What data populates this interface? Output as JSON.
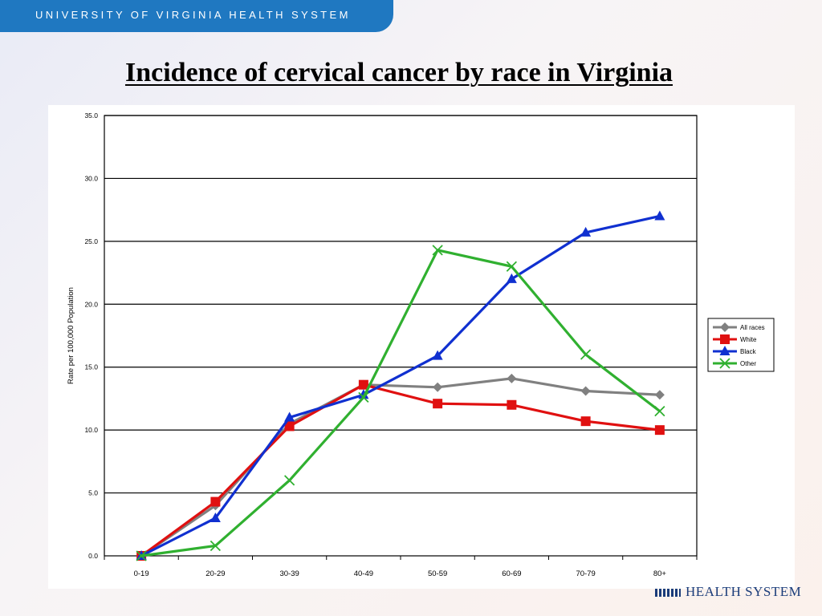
{
  "header": {
    "text": "UNIVERSITY OF VIRGINIA HEALTH SYSTEM"
  },
  "slide": {
    "title": "Incidence of cervical cancer by race in Virginia"
  },
  "footer": {
    "logo_text": "HEALTH SYSTEM"
  },
  "chart_data": {
    "type": "line",
    "title": "",
    "xlabel": "",
    "ylabel": "Rate per 100,000 Population",
    "ylim": [
      0,
      35
    ],
    "yticks": [
      "0.0",
      "5.0",
      "10.0",
      "15.0",
      "20.0",
      "25.0",
      "30.0",
      "35.0"
    ],
    "grid": "horizontal",
    "legend_position": "right",
    "categories": [
      "0-19",
      "20-29",
      "30-39",
      "40-49",
      "50-59",
      "60-69",
      "70-79",
      "80+"
    ],
    "series": [
      {
        "name": "All races",
        "color": "#808080",
        "marker": "diamond",
        "values": [
          0,
          4.0,
          10.5,
          13.6,
          13.4,
          14.1,
          13.1,
          12.8
        ]
      },
      {
        "name": "White",
        "color": "#e01010",
        "marker": "square",
        "values": [
          0,
          4.3,
          10.3,
          13.6,
          12.1,
          12.0,
          10.7,
          10.0
        ]
      },
      {
        "name": "Black",
        "color": "#1030d0",
        "marker": "triangle",
        "values": [
          0,
          3.0,
          11.0,
          12.8,
          15.9,
          22.0,
          25.7,
          27.0
        ]
      },
      {
        "name": "Other",
        "color": "#30b030",
        "marker": "x",
        "values": [
          0,
          0.8,
          6.0,
          12.6,
          24.3,
          23.0,
          16.0,
          11.5
        ]
      }
    ]
  }
}
